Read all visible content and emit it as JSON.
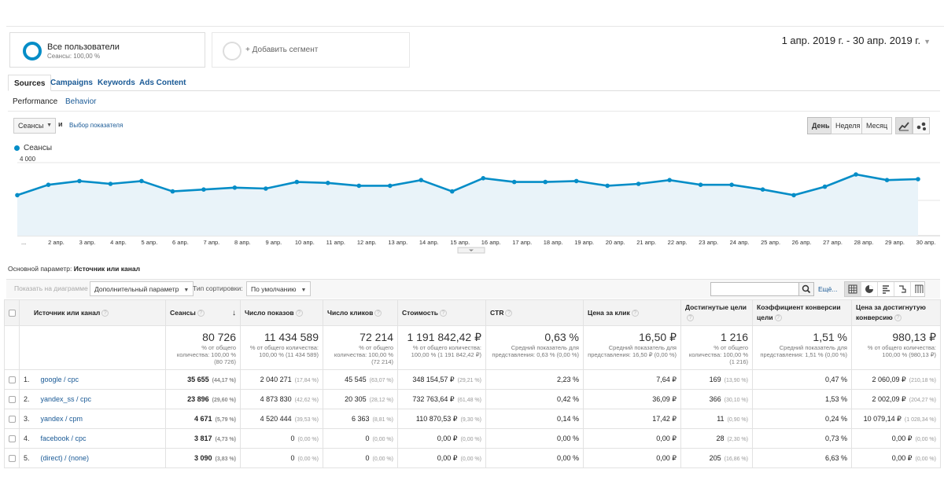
{
  "segments": {
    "active": {
      "title": "Все пользователи",
      "subtitle": "Сеансы: 100,00 %"
    },
    "add_label": "+ Добавить сегмент"
  },
  "date_range": "1 апр. 2019 г. - 30 апр. 2019 г.",
  "tabs": [
    "Sources",
    "Campaigns",
    "Keywords",
    "Ads Content"
  ],
  "subtabs": [
    "Performance",
    "Behavior"
  ],
  "metric_selector": {
    "value": "Сеансы",
    "and": "и",
    "choose": "Выбор показателя"
  },
  "granularity": [
    "День",
    "Неделя",
    "Месяц"
  ],
  "chart_data": {
    "type": "area",
    "series": [
      {
        "name": "Сеансы",
        "values": [
          2150,
          2700,
          2900,
          2750,
          2900,
          2350,
          2450,
          2550,
          2500,
          2850,
          2800,
          2650,
          2650,
          2950,
          2350,
          3050,
          2850,
          2850,
          2900,
          2650,
          2750,
          2950,
          2700,
          2700,
          2450,
          2150,
          2600,
          3250,
          2950,
          3000
        ]
      }
    ],
    "x": [
      "1 апр.",
      "2 апр.",
      "3 апр.",
      "4 апр.",
      "5 апр.",
      "6 апр.",
      "7 апр.",
      "8 апр.",
      "9 апр.",
      "10 апр.",
      "11 апр.",
      "12 апр.",
      "13 апр.",
      "14 апр.",
      "15 апр.",
      "16 апр.",
      "17 апр.",
      "18 апр.",
      "19 апр.",
      "20 апр.",
      "21 апр.",
      "22 апр.",
      "23 апр.",
      "24 апр.",
      "25 апр.",
      "26 апр.",
      "27 апр.",
      "28 апр.",
      "29 апр.",
      "30 апр."
    ],
    "x_tick_labels": [
      "...",
      "2 апр.",
      "3 апр.",
      "4 апр.",
      "5 апр.",
      "6 апр.",
      "7 апр.",
      "8 апр.",
      "9 апр.",
      "10 апр.",
      "11 апр.",
      "12 апр.",
      "13 апр.",
      "14 апр.",
      "15 апр.",
      "16 апр.",
      "17 апр.",
      "18 апр.",
      "19 апр.",
      "20 апр.",
      "21 апр.",
      "22 апр.",
      "23 апр.",
      "24 апр.",
      "25 апр.",
      "26 апр.",
      "27 апр.",
      "28 апр.",
      "29 апр.",
      "30 апр."
    ],
    "y_ticks": [
      "4 000",
      "2 000"
    ],
    "ylim": [
      0,
      4000
    ],
    "grid": true,
    "color": "#058dc7"
  },
  "primary_dimension": {
    "label": "Основной параметр:",
    "value": "Источник или канал"
  },
  "toolbar": {
    "plot_rows": "Показать на диаграмме",
    "secondary_dimension": "Дополнительный параметр",
    "sort_label": "Тип сортировки:",
    "sort_value": "По умолчанию",
    "more": "Ещё..."
  },
  "table": {
    "headers": [
      "Источник или канал",
      "Сеансы",
      "Число показов",
      "Число кликов",
      "Стоимость",
      "CTR",
      "Цена за клик",
      "Достигнутые цели",
      "Коэффициент конверсии цели",
      "Цена за достигнутую конверсию"
    ],
    "totals": [
      {
        "big": "80 726",
        "sub": "% от общего количества: 100,00 % (80 726)"
      },
      {
        "big": "11 434 589",
        "sub": "% от общего количества: 100,00 % (11 434 589)"
      },
      {
        "big": "72 214",
        "sub": "% от общего количества: 100,00 % (72 214)"
      },
      {
        "big": "1 191 842,42 ₽",
        "sub": "% от общего количества: 100,00 % (1 191 842,42 ₽)"
      },
      {
        "big": "0,63 %",
        "sub": "Средний показатель для представления: 0,63 % (0,00 %)"
      },
      {
        "big": "16,50 ₽",
        "sub": "Средний показатель для представления: 16,50 ₽ (0,00 %)"
      },
      {
        "big": "1 216",
        "sub": "% от общего количества: 100,00 % (1 216)"
      },
      {
        "big": "1,51 %",
        "sub": "Средний показатель для представления: 1,51 % (0,00 %)"
      },
      {
        "big": "980,13 ₽",
        "sub": "% от общего количества: 100,00 % (980,13 ₽)"
      }
    ],
    "rows": [
      {
        "idx": "1.",
        "source": "google / cpc",
        "sessions": "35 655",
        "sessions_pct": "(44,17 %)",
        "impr": "2 040 271",
        "impr_pct": "(17,84 %)",
        "clicks": "45 545",
        "clicks_pct": "(63,07 %)",
        "cost": "348 154,57 ₽",
        "cost_pct": "(29,21 %)",
        "ctr": "2,23 %",
        "cpc": "7,64 ₽",
        "goals": "169",
        "goals_pct": "(13,90 %)",
        "conv": "0,47 %",
        "cpa": "2 060,09 ₽",
        "cpa_pct": "(210,18 %)"
      },
      {
        "idx": "2.",
        "source": "yandex_ss / cpc",
        "sessions": "23 896",
        "sessions_pct": "(29,60 %)",
        "impr": "4 873 830",
        "impr_pct": "(42,62 %)",
        "clicks": "20 305",
        "clicks_pct": "(28,12 %)",
        "cost": "732 763,64 ₽",
        "cost_pct": "(61,48 %)",
        "ctr": "0,42 %",
        "cpc": "36,09 ₽",
        "goals": "366",
        "goals_pct": "(30,10 %)",
        "conv": "1,53 %",
        "cpa": "2 002,09 ₽",
        "cpa_pct": "(204,27 %)"
      },
      {
        "idx": "3.",
        "source": "yandex / cpm",
        "sessions": "4 671",
        "sessions_pct": "(5,79 %)",
        "impr": "4 520 444",
        "impr_pct": "(39,53 %)",
        "clicks": "6 363",
        "clicks_pct": "(8,81 %)",
        "cost": "110 870,53 ₽",
        "cost_pct": "(9,30 %)",
        "ctr": "0,14 %",
        "cpc": "17,42 ₽",
        "goals": "11",
        "goals_pct": "(0,90 %)",
        "conv": "0,24 %",
        "cpa": "10 079,14 ₽",
        "cpa_pct": "(1 028,34 %)"
      },
      {
        "idx": "4.",
        "source": "facebook / cpc",
        "sessions": "3 817",
        "sessions_pct": "(4,73 %)",
        "impr": "0",
        "impr_pct": "(0,00 %)",
        "clicks": "0",
        "clicks_pct": "(0,00 %)",
        "cost": "0,00 ₽",
        "cost_pct": "(0,00 %)",
        "ctr": "0,00 %",
        "cpc": "0,00 ₽",
        "goals": "28",
        "goals_pct": "(2,30 %)",
        "conv": "0,73 %",
        "cpa": "0,00 ₽",
        "cpa_pct": "(0,00 %)"
      },
      {
        "idx": "5.",
        "source": "(direct) / (none)",
        "sessions": "3 090",
        "sessions_pct": "(3,83 %)",
        "impr": "0",
        "impr_pct": "(0,00 %)",
        "clicks": "0",
        "clicks_pct": "(0,00 %)",
        "cost": "0,00 ₽",
        "cost_pct": "(0,00 %)",
        "ctr": "0,00 %",
        "cpc": "0,00 ₽",
        "goals": "205",
        "goals_pct": "(16,86 %)",
        "conv": "6,63 %",
        "cpa": "0,00 ₽",
        "cpa_pct": "(0,00 %)"
      }
    ]
  }
}
